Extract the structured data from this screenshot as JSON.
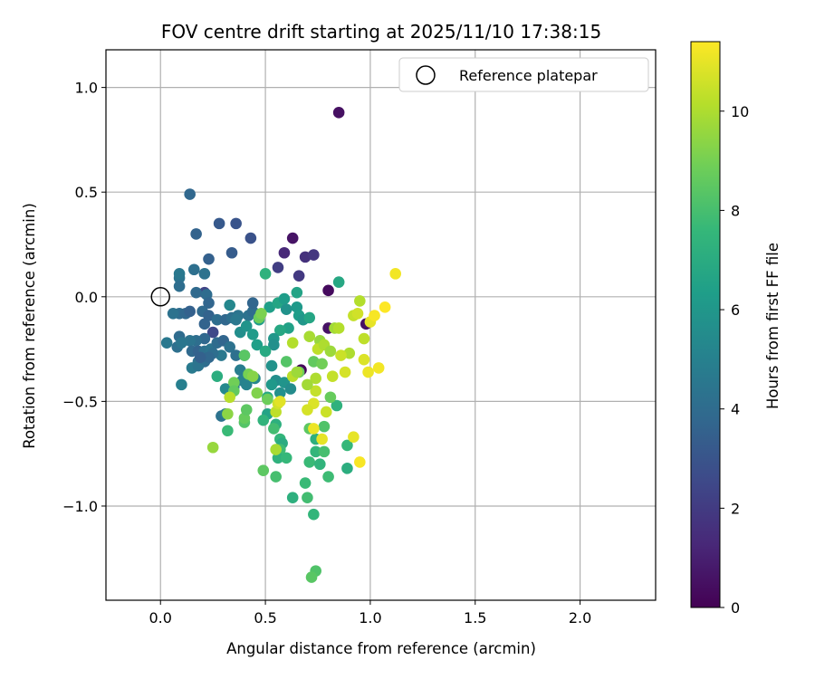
{
  "chart_data": {
    "type": "scatter",
    "title": "FOV centre drift starting at 2025/11/10 17:38:15",
    "xlabel": "Angular distance from reference (arcmin)",
    "ylabel": "Rotation from reference (arcmin)",
    "xlim": [
      -0.26,
      2.36
    ],
    "ylim": [
      -1.45,
      1.18
    ],
    "xticks": [
      0.0,
      0.5,
      1.0,
      1.5,
      2.0
    ],
    "xtick_labels": [
      "0.0",
      "0.5",
      "1.0",
      "1.5",
      "2.0"
    ],
    "yticks": [
      1.0,
      0.5,
      0.0,
      -0.5,
      -1.0
    ],
    "ytick_labels": [
      "1.0",
      "0.5",
      "0.0",
      "−0.5",
      "−1.0"
    ],
    "grid": true,
    "legend": {
      "position": "top-right",
      "entries": [
        "Reference platepar"
      ]
    },
    "reference_point": {
      "x": 0.0,
      "y": 0.0
    },
    "colorbar": {
      "label": "Hours from first FF file",
      "range": [
        0,
        11.4
      ],
      "ticks": [
        0,
        2,
        4,
        6,
        8,
        10
      ],
      "tick_labels": [
        "0",
        "2",
        "4",
        "6",
        "8",
        "10"
      ],
      "colormap": "viridis"
    },
    "colormap_stops": [
      "#440154",
      "#482878",
      "#3e4989",
      "#31688e",
      "#26828e",
      "#1f9e89",
      "#35b779",
      "#6ece58",
      "#b5de2b",
      "#fde725"
    ],
    "points": [
      {
        "x": 0.85,
        "y": 0.88,
        "t": 0.5
      },
      {
        "x": 0.63,
        "y": 0.28,
        "t": 0.6
      },
      {
        "x": 0.8,
        "y": 0.03,
        "t": 0.3
      },
      {
        "x": 0.67,
        "y": -0.35,
        "t": 0.2
      },
      {
        "x": 0.98,
        "y": -0.13,
        "t": 0.5
      },
      {
        "x": 0.8,
        "y": -0.15,
        "t": 0.6
      },
      {
        "x": 0.59,
        "y": 0.21,
        "t": 1.3
      },
      {
        "x": 0.69,
        "y": 0.19,
        "t": 1.6
      },
      {
        "x": 0.73,
        "y": 0.2,
        "t": 1.8
      },
      {
        "x": 0.66,
        "y": 0.1,
        "t": 1.9
      },
      {
        "x": 0.56,
        "y": 0.14,
        "t": 2.1
      },
      {
        "x": 0.36,
        "y": 0.35,
        "t": 3.0
      },
      {
        "x": 0.28,
        "y": 0.35,
        "t": 3.2
      },
      {
        "x": 0.43,
        "y": 0.28,
        "t": 2.9
      },
      {
        "x": 0.34,
        "y": 0.21,
        "t": 3.3
      },
      {
        "x": 0.17,
        "y": 0.3,
        "t": 3.6
      },
      {
        "x": 0.14,
        "y": 0.49,
        "t": 3.8
      },
      {
        "x": 0.23,
        "y": 0.18,
        "t": 3.5
      },
      {
        "x": 0.21,
        "y": 0.02,
        "t": 2.3
      },
      {
        "x": 0.16,
        "y": 0.13,
        "t": 4.2
      },
      {
        "x": 0.09,
        "y": 0.09,
        "t": 4.4
      },
      {
        "x": 0.09,
        "y": 0.11,
        "t": 4.6
      },
      {
        "x": 0.21,
        "y": 0.11,
        "t": 4.3
      },
      {
        "x": 0.09,
        "y": 0.05,
        "t": 4.1
      },
      {
        "x": 0.17,
        "y": 0.02,
        "t": 3.9
      },
      {
        "x": 0.22,
        "y": 0.01,
        "t": 4.0
      },
      {
        "x": 0.23,
        "y": -0.03,
        "t": 3.7
      },
      {
        "x": 0.09,
        "y": -0.08,
        "t": 4.0
      },
      {
        "x": 0.06,
        "y": -0.08,
        "t": 4.3
      },
      {
        "x": 0.12,
        "y": -0.08,
        "t": 3.8
      },
      {
        "x": 0.14,
        "y": -0.07,
        "t": 3.5
      },
      {
        "x": 0.2,
        "y": -0.07,
        "t": 3.9
      },
      {
        "x": 0.23,
        "y": -0.09,
        "t": 3.6
      },
      {
        "x": 0.27,
        "y": -0.11,
        "t": 4.1
      },
      {
        "x": 0.31,
        "y": -0.11,
        "t": 3.8
      },
      {
        "x": 0.34,
        "y": -0.1,
        "t": 4.2
      },
      {
        "x": 0.37,
        "y": -0.09,
        "t": 4.4
      },
      {
        "x": 0.36,
        "y": -0.11,
        "t": 4.6
      },
      {
        "x": 0.42,
        "y": -0.09,
        "t": 4.3
      },
      {
        "x": 0.44,
        "y": -0.07,
        "t": 4.0
      },
      {
        "x": 0.44,
        "y": -0.03,
        "t": 3.7
      },
      {
        "x": 0.33,
        "y": -0.04,
        "t": 5.3
      },
      {
        "x": 0.21,
        "y": -0.13,
        "t": 3.6
      },
      {
        "x": 0.25,
        "y": -0.17,
        "t": 2.5
      },
      {
        "x": 0.21,
        "y": -0.2,
        "t": 3.8
      },
      {
        "x": 0.17,
        "y": -0.21,
        "t": 4.1
      },
      {
        "x": 0.14,
        "y": -0.21,
        "t": 4.4
      },
      {
        "x": 0.09,
        "y": -0.19,
        "t": 4.0
      },
      {
        "x": 0.03,
        "y": -0.22,
        "t": 4.6
      },
      {
        "x": 0.08,
        "y": -0.24,
        "t": 4.2
      },
      {
        "x": 0.1,
        "y": -0.22,
        "t": 4.5
      },
      {
        "x": 0.15,
        "y": -0.26,
        "t": 3.9
      },
      {
        "x": 0.18,
        "y": -0.26,
        "t": 3.6
      },
      {
        "x": 0.21,
        "y": -0.26,
        "t": 4.2
      },
      {
        "x": 0.24,
        "y": -0.25,
        "t": 4.4
      },
      {
        "x": 0.27,
        "y": -0.22,
        "t": 4.0
      },
      {
        "x": 0.3,
        "y": -0.21,
        "t": 3.7
      },
      {
        "x": 0.33,
        "y": -0.24,
        "t": 4.3
      },
      {
        "x": 0.29,
        "y": -0.28,
        "t": 4.6
      },
      {
        "x": 0.25,
        "y": -0.27,
        "t": 4.1
      },
      {
        "x": 0.21,
        "y": -0.31,
        "t": 3.9
      },
      {
        "x": 0.18,
        "y": -0.31,
        "t": 4.3
      },
      {
        "x": 0.15,
        "y": -0.34,
        "t": 4.7
      },
      {
        "x": 0.18,
        "y": -0.33,
        "t": 4.4
      },
      {
        "x": 0.21,
        "y": -0.3,
        "t": 4.1
      },
      {
        "x": 0.23,
        "y": -0.29,
        "t": 3.8
      },
      {
        "x": 0.19,
        "y": -0.29,
        "t": 3.5
      },
      {
        "x": 0.1,
        "y": -0.42,
        "t": 4.9
      },
      {
        "x": 0.36,
        "y": -0.28,
        "t": 4.2
      },
      {
        "x": 0.4,
        "y": -0.28,
        "t": 4.5
      },
      {
        "x": 0.38,
        "y": -0.35,
        "t": 4.8
      },
      {
        "x": 0.39,
        "y": -0.4,
        "t": 5.0
      },
      {
        "x": 0.41,
        "y": -0.42,
        "t": 5.1
      },
      {
        "x": 0.45,
        "y": -0.39,
        "t": 5.3
      },
      {
        "x": 0.35,
        "y": -0.43,
        "t": 4.6
      },
      {
        "x": 0.31,
        "y": -0.44,
        "t": 5.4
      },
      {
        "x": 0.29,
        "y": -0.57,
        "t": 4.3
      },
      {
        "x": 0.31,
        "y": -0.56,
        "t": 4.7
      },
      {
        "x": 0.55,
        "y": -0.4,
        "t": 5.6
      },
      {
        "x": 0.59,
        "y": -0.41,
        "t": 5.9
      },
      {
        "x": 0.62,
        "y": -0.44,
        "t": 5.5
      },
      {
        "x": 0.57,
        "y": -0.46,
        "t": 5.7
      },
      {
        "x": 0.53,
        "y": -0.42,
        "t": 6.1
      },
      {
        "x": 0.53,
        "y": -0.33,
        "t": 5.8
      },
      {
        "x": 0.38,
        "y": -0.17,
        "t": 5.6
      },
      {
        "x": 0.41,
        "y": -0.14,
        "t": 5.9
      },
      {
        "x": 0.47,
        "y": -0.11,
        "t": 6.2
      },
      {
        "x": 0.52,
        "y": -0.05,
        "t": 6.4
      },
      {
        "x": 0.56,
        "y": -0.03,
        "t": 6.7
      },
      {
        "x": 0.59,
        "y": -0.01,
        "t": 6.3
      },
      {
        "x": 0.65,
        "y": 0.02,
        "t": 6.6
      },
      {
        "x": 0.65,
        "y": -0.05,
        "t": 6.1
      },
      {
        "x": 0.6,
        "y": -0.06,
        "t": 5.8
      },
      {
        "x": 0.61,
        "y": -0.15,
        "t": 6.5
      },
      {
        "x": 0.57,
        "y": -0.16,
        "t": 6.8
      },
      {
        "x": 0.54,
        "y": -0.2,
        "t": 6.0
      },
      {
        "x": 0.54,
        "y": -0.23,
        "t": 5.7
      },
      {
        "x": 0.46,
        "y": -0.23,
        "t": 6.4
      },
      {
        "x": 0.5,
        "y": -0.26,
        "t": 6.9
      },
      {
        "x": 0.44,
        "y": -0.18,
        "t": 6.2
      },
      {
        "x": 0.66,
        "y": -0.09,
        "t": 6.3
      },
      {
        "x": 0.68,
        "y": -0.11,
        "t": 6.0
      },
      {
        "x": 0.71,
        "y": -0.1,
        "t": 6.7
      },
      {
        "x": 0.5,
        "y": 0.11,
        "t": 7.3
      },
      {
        "x": 0.85,
        "y": 0.07,
        "t": 6.8
      },
      {
        "x": 0.51,
        "y": -0.48,
        "t": 6.9
      },
      {
        "x": 0.51,
        "y": -0.56,
        "t": 6.6
      },
      {
        "x": 0.55,
        "y": -0.61,
        "t": 7.2
      },
      {
        "x": 0.57,
        "y": -0.68,
        "t": 7.5
      },
      {
        "x": 0.58,
        "y": -0.7,
        "t": 7.0
      },
      {
        "x": 0.49,
        "y": -0.59,
        "t": 7.4
      },
      {
        "x": 0.32,
        "y": -0.64,
        "t": 7.7
      },
      {
        "x": 0.27,
        "y": -0.38,
        "t": 7.1
      },
      {
        "x": 0.57,
        "y": -0.73,
        "t": 7.8
      },
      {
        "x": 0.56,
        "y": -0.77,
        "t": 7.3
      },
      {
        "x": 0.6,
        "y": -0.77,
        "t": 7.6
      },
      {
        "x": 0.54,
        "y": -0.63,
        "t": 7.9
      },
      {
        "x": 0.74,
        "y": -0.68,
        "t": 7.2
      },
      {
        "x": 0.74,
        "y": -0.74,
        "t": 7.5
      },
      {
        "x": 0.78,
        "y": -0.74,
        "t": 8.0
      },
      {
        "x": 0.71,
        "y": -0.79,
        "t": 7.7
      },
      {
        "x": 0.76,
        "y": -0.8,
        "t": 7.4
      },
      {
        "x": 0.8,
        "y": -0.86,
        "t": 7.8
      },
      {
        "x": 0.89,
        "y": -0.82,
        "t": 7.1
      },
      {
        "x": 0.89,
        "y": -0.71,
        "t": 7.6
      },
      {
        "x": 0.84,
        "y": -0.52,
        "t": 7.3
      },
      {
        "x": 0.69,
        "y": -0.89,
        "t": 7.7
      },
      {
        "x": 0.63,
        "y": -0.96,
        "t": 7.2
      },
      {
        "x": 0.7,
        "y": -0.96,
        "t": 7.9
      },
      {
        "x": 0.55,
        "y": -0.86,
        "t": 8.0
      },
      {
        "x": 0.73,
        "y": -1.04,
        "t": 7.5
      },
      {
        "x": 0.74,
        "y": -1.31,
        "t": 8.2
      },
      {
        "x": 0.72,
        "y": -1.34,
        "t": 8.4
      },
      {
        "x": 0.49,
        "y": -0.83,
        "t": 8.5
      },
      {
        "x": 0.66,
        "y": -0.36,
        "t": 8.8
      },
      {
        "x": 0.6,
        "y": -0.31,
        "t": 8.3
      },
      {
        "x": 0.73,
        "y": -0.31,
        "t": 8.6
      },
      {
        "x": 0.77,
        "y": -0.32,
        "t": 8.9
      },
      {
        "x": 0.81,
        "y": -0.48,
        "t": 8.7
      },
      {
        "x": 0.78,
        "y": -0.62,
        "t": 8.2
      },
      {
        "x": 0.71,
        "y": -0.63,
        "t": 8.5
      },
      {
        "x": 0.4,
        "y": -0.28,
        "t": 8.4
      },
      {
        "x": 0.47,
        "y": -0.1,
        "t": 8.8
      },
      {
        "x": 0.48,
        "y": -0.08,
        "t": 9.1
      },
      {
        "x": 0.35,
        "y": -0.41,
        "t": 8.9
      },
      {
        "x": 0.35,
        "y": -0.45,
        "t": 8.6
      },
      {
        "x": 0.4,
        "y": -0.6,
        "t": 8.3
      },
      {
        "x": 0.4,
        "y": -0.58,
        "t": 8.7
      },
      {
        "x": 0.42,
        "y": -0.37,
        "t": 9.0
      },
      {
        "x": 0.44,
        "y": -0.38,
        "t": 9.3
      },
      {
        "x": 0.51,
        "y": -0.49,
        "t": 8.8
      },
      {
        "x": 0.46,
        "y": -0.46,
        "t": 9.2
      },
      {
        "x": 0.41,
        "y": -0.54,
        "t": 8.5
      },
      {
        "x": 0.32,
        "y": -0.56,
        "t": 9.4
      },
      {
        "x": 0.25,
        "y": -0.72,
        "t": 9.6
      },
      {
        "x": 0.33,
        "y": -0.48,
        "t": 10.2
      },
      {
        "x": 0.55,
        "y": -0.55,
        "t": 10.3
      },
      {
        "x": 0.56,
        "y": -0.51,
        "t": 10.6
      },
      {
        "x": 0.57,
        "y": -0.5,
        "t": 10.9
      },
      {
        "x": 0.55,
        "y": -0.73,
        "t": 9.9
      },
      {
        "x": 0.74,
        "y": -0.45,
        "t": 10.4
      },
      {
        "x": 0.73,
        "y": -0.51,
        "t": 10.8
      },
      {
        "x": 0.73,
        "y": -0.63,
        "t": 11.1
      },
      {
        "x": 0.79,
        "y": -0.55,
        "t": 10.5
      },
      {
        "x": 0.77,
        "y": -0.68,
        "t": 11.0
      },
      {
        "x": 0.7,
        "y": -0.54,
        "t": 10.7
      },
      {
        "x": 0.74,
        "y": -0.39,
        "t": 10.0
      },
      {
        "x": 0.7,
        "y": -0.42,
        "t": 9.8
      },
      {
        "x": 0.63,
        "y": -0.38,
        "t": 10.2
      },
      {
        "x": 0.65,
        "y": -0.36,
        "t": 9.7
      },
      {
        "x": 0.63,
        "y": -0.22,
        "t": 10.1
      },
      {
        "x": 0.71,
        "y": -0.19,
        "t": 9.9
      },
      {
        "x": 0.76,
        "y": -0.21,
        "t": 9.6
      },
      {
        "x": 0.75,
        "y": -0.25,
        "t": 10.3
      },
      {
        "x": 0.78,
        "y": -0.23,
        "t": 10.0
      },
      {
        "x": 0.81,
        "y": -0.26,
        "t": 9.7
      },
      {
        "x": 0.82,
        "y": -0.38,
        "t": 10.4
      },
      {
        "x": 0.88,
        "y": -0.36,
        "t": 10.7
      },
      {
        "x": 0.83,
        "y": -0.15,
        "t": 9.8
      },
      {
        "x": 0.85,
        "y": -0.15,
        "t": 10.1
      },
      {
        "x": 0.92,
        "y": -0.09,
        "t": 10.4
      },
      {
        "x": 0.94,
        "y": -0.08,
        "t": 10.6
      },
      {
        "x": 0.95,
        "y": -0.02,
        "t": 10.1
      },
      {
        "x": 0.97,
        "y": -0.2,
        "t": 10.3
      },
      {
        "x": 0.9,
        "y": -0.27,
        "t": 10.0
      },
      {
        "x": 0.86,
        "y": -0.28,
        "t": 10.5
      },
      {
        "x": 0.97,
        "y": -0.3,
        "t": 10.8
      },
      {
        "x": 0.99,
        "y": -0.36,
        "t": 11.1
      },
      {
        "x": 1.04,
        "y": -0.34,
        "t": 11.2
      },
      {
        "x": 1.0,
        "y": -0.12,
        "t": 11.0
      },
      {
        "x": 1.02,
        "y": -0.09,
        "t": 11.3
      },
      {
        "x": 1.07,
        "y": -0.05,
        "t": 11.4
      },
      {
        "x": 1.12,
        "y": 0.11,
        "t": 11.2
      },
      {
        "x": 0.92,
        "y": -0.67,
        "t": 11.0
      },
      {
        "x": 0.95,
        "y": -0.79,
        "t": 11.3
      }
    ]
  }
}
